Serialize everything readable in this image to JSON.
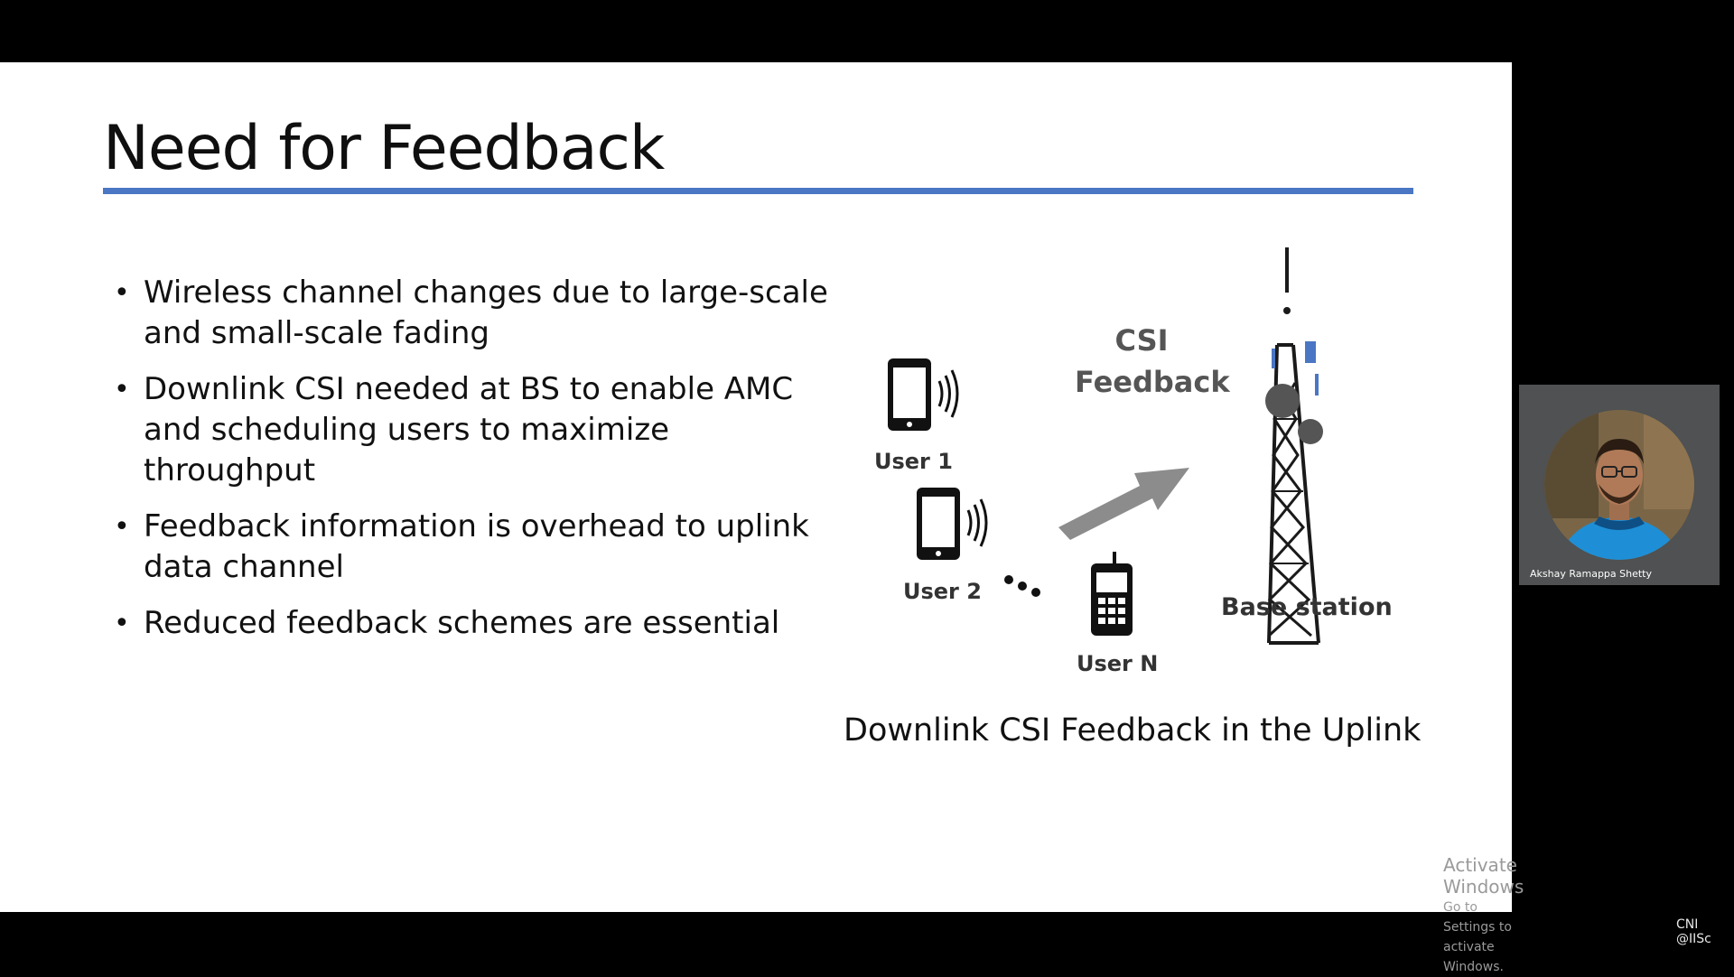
{
  "slide": {
    "title": "Need for Feedback",
    "bullets": [
      "Wireless channel changes due to large-scale and small-scale fading",
      "Downlink CSI needed at BS to enable AMC and scheduling users to maximize throughput",
      "Feedback information is overhead to uplink data channel",
      "Reduced feedback schemes are essential"
    ],
    "bullet_marker": "•",
    "diagram": {
      "csi_line1": "CSI",
      "csi_line2": "Feedback",
      "user1": "User 1",
      "user2": "User 2",
      "userN": "User N",
      "ellipsis": "• • •",
      "base_station": "Base station",
      "caption": "Downlink CSI Feedback in the Uplink"
    },
    "colors": {
      "rule": "#4a76c4",
      "arrow": "#8c8c8c",
      "tower": "#1a1a1a",
      "antenna_accent": "#4a76c4"
    }
  },
  "webcam": {
    "name": "Akshay Ramappa Shetty"
  },
  "watermark": {
    "line1": "Activate Windows",
    "line2": "Go to Settings to activate Windows."
  },
  "corner_tag": {
    "line1": "CNI",
    "line2": "@IISc"
  }
}
